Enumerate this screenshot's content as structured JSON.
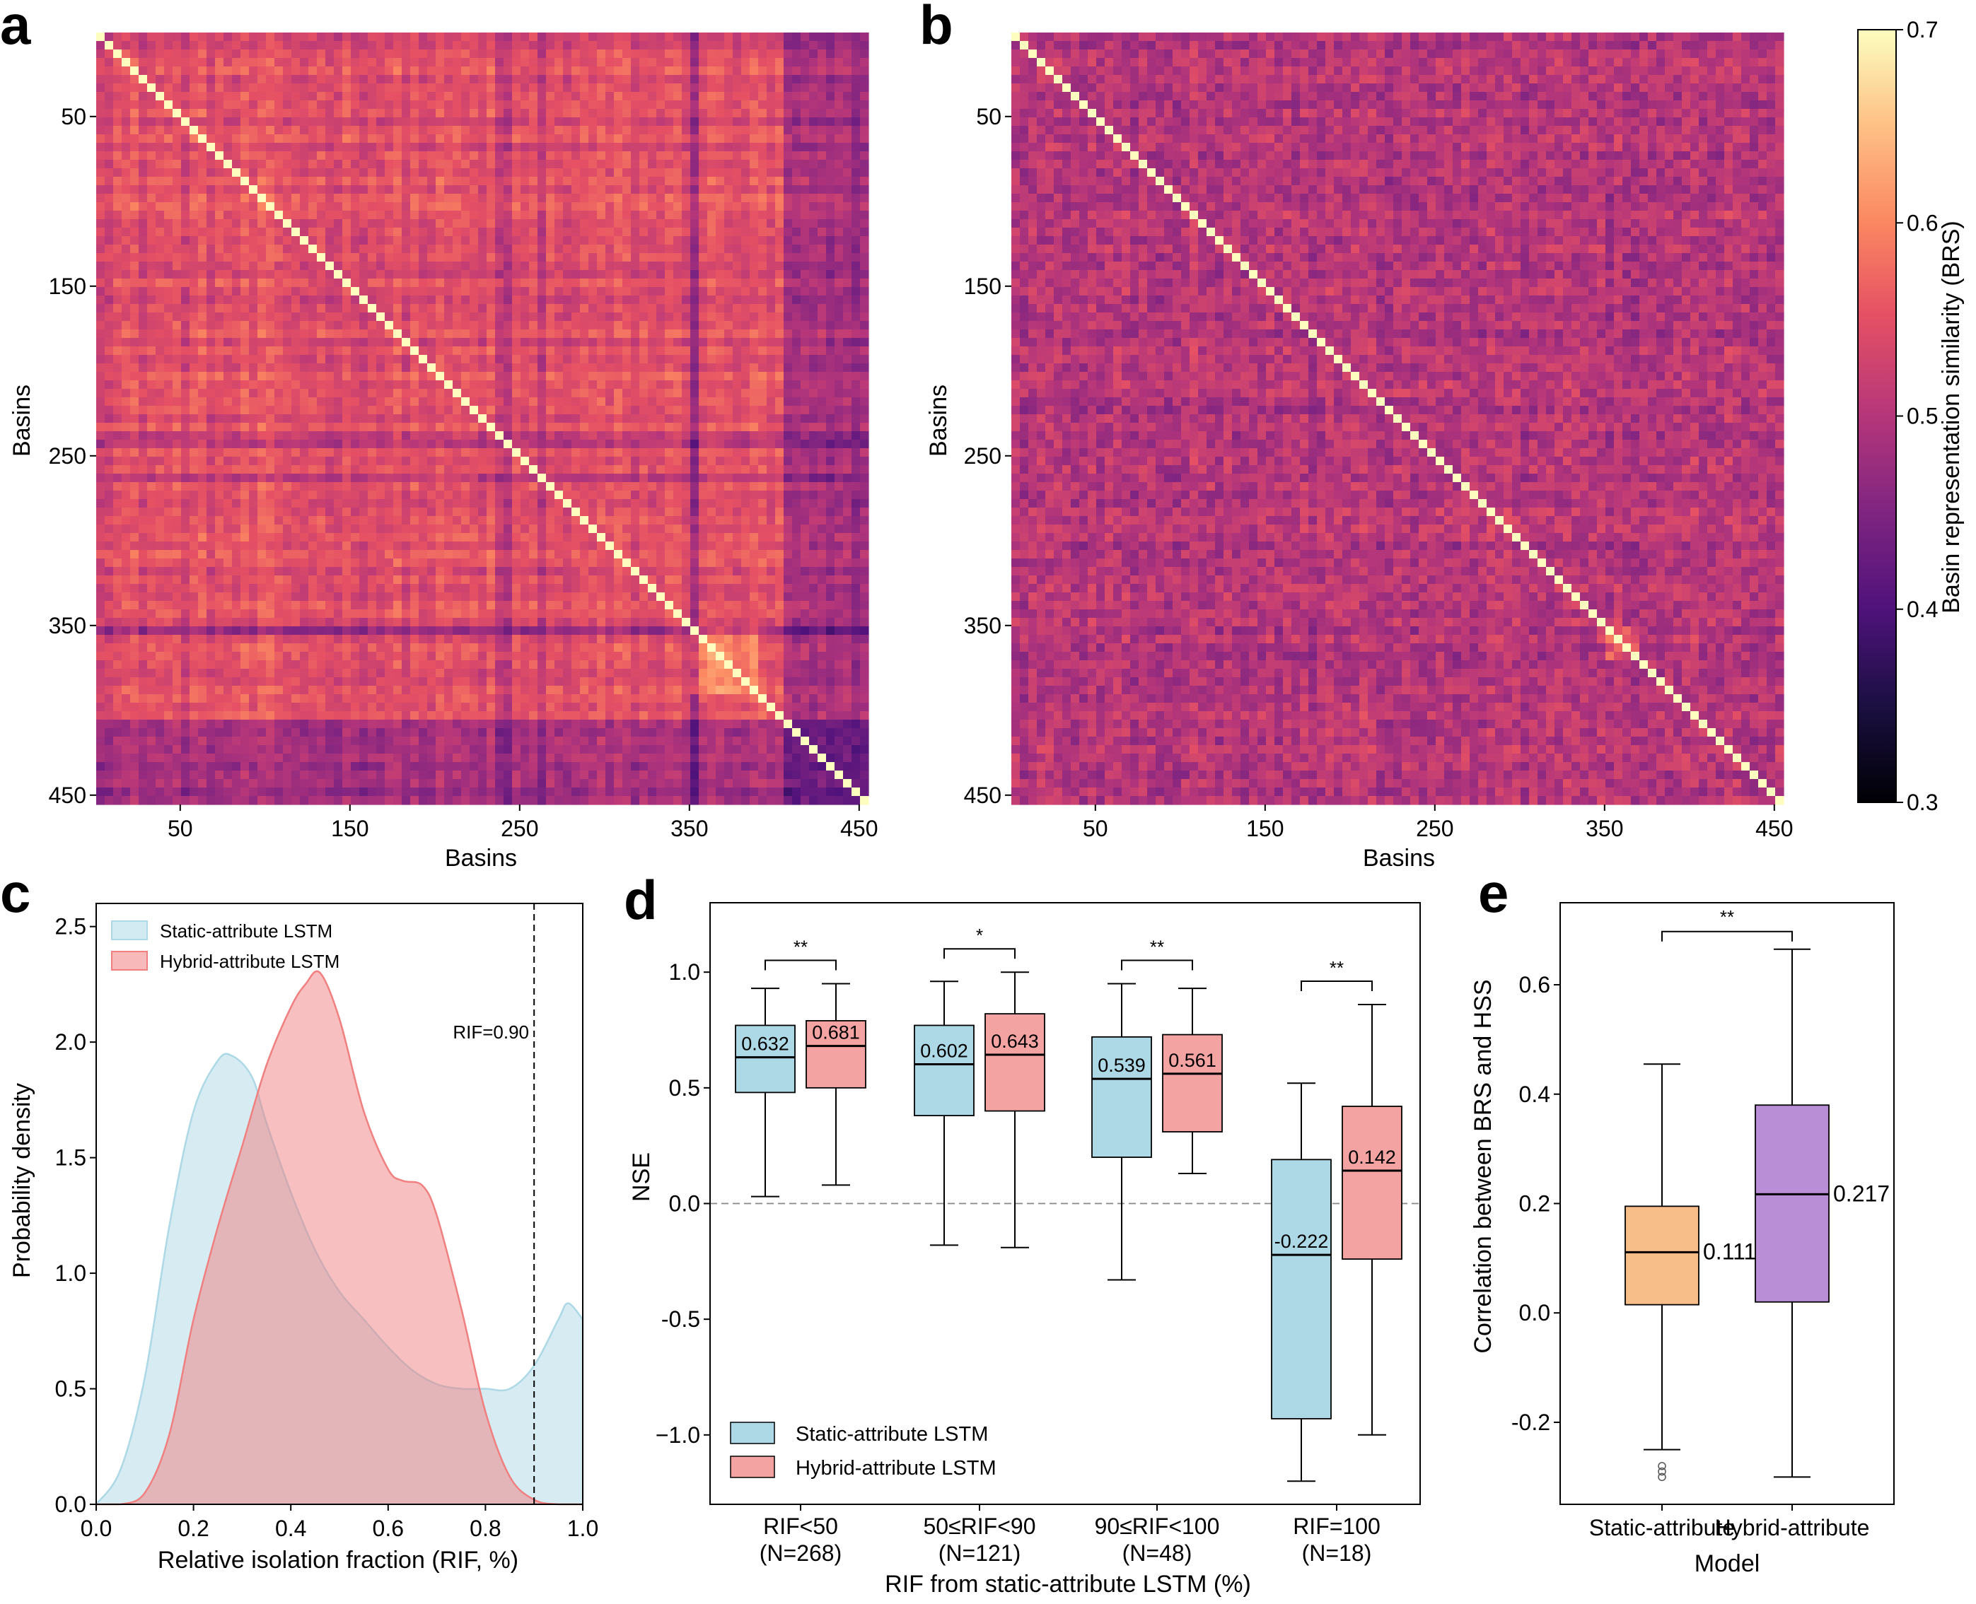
{
  "panel_labels": [
    "a",
    "b",
    "c",
    "d",
    "e"
  ],
  "chart_data": [
    {
      "panel": "a",
      "type": "heatmap",
      "title": "",
      "xlabel": "Basins",
      "ylabel": "Basins",
      "n_basins": 455,
      "x_ticks": [
        50,
        150,
        250,
        350,
        450
      ],
      "y_ticks": [
        50,
        150,
        250,
        350,
        450
      ],
      "value_range": [
        0.3,
        0.7
      ],
      "structure_note": "High-similarity block for basins 1-400; low-similarity bands near 240, 260, 350, 405-455; bright cluster 352-390"
    },
    {
      "panel": "b",
      "type": "heatmap",
      "title": "",
      "xlabel": "Basins",
      "ylabel": "Basins",
      "n_basins": 455,
      "x_ticks": [
        50,
        150,
        250,
        350,
        450
      ],
      "y_ticks": [
        50,
        150,
        250,
        350,
        450
      ],
      "value_range": [
        0.3,
        0.7
      ],
      "structure_note": "Uniform mid similarity with diagonal and bright cluster near 352-370"
    },
    {
      "panel": "colorbar",
      "type": "colorbar",
      "label": "Basin representation similarity (BRS)",
      "range": [
        0.3,
        0.7
      ],
      "ticks": [
        "0.3",
        "0.4",
        "0.5",
        "0.6",
        "0.7"
      ],
      "colormap": "magma"
    },
    {
      "panel": "c",
      "type": "area",
      "xlabel": "Relative isolation fraction (RIF, %)",
      "ylabel": "Probability density",
      "xlim": [
        0.0,
        1.0
      ],
      "ylim": [
        0.0,
        2.6
      ],
      "x_ticks": [
        "0.0",
        "0.2",
        "0.4",
        "0.6",
        "0.8",
        "1.0"
      ],
      "y_ticks": [
        "0.0",
        "0.5",
        "1.0",
        "1.5",
        "2.0",
        "2.5"
      ],
      "series": [
        {
          "name": "Static-attribute LSTM",
          "color": "#add8e6",
          "x": [
            0.0,
            0.05,
            0.1,
            0.15,
            0.2,
            0.25,
            0.28,
            0.32,
            0.35,
            0.4,
            0.45,
            0.5,
            0.55,
            0.6,
            0.65,
            0.7,
            0.75,
            0.8,
            0.85,
            0.9,
            0.95,
            0.97,
            1.0
          ],
          "y": [
            0.0,
            0.15,
            0.55,
            1.2,
            1.7,
            1.92,
            1.94,
            1.85,
            1.65,
            1.35,
            1.1,
            0.92,
            0.8,
            0.68,
            0.58,
            0.52,
            0.5,
            0.5,
            0.5,
            0.6,
            0.8,
            0.87,
            0.8
          ]
        },
        {
          "name": "Hybrid-attribute LSTM",
          "color": "#f08080",
          "x": [
            0.0,
            0.05,
            0.1,
            0.15,
            0.2,
            0.25,
            0.3,
            0.35,
            0.4,
            0.43,
            0.46,
            0.5,
            0.55,
            0.6,
            0.63,
            0.67,
            0.7,
            0.75,
            0.8,
            0.85,
            0.9,
            0.95,
            1.0
          ],
          "y": [
            0.0,
            0.0,
            0.05,
            0.3,
            0.8,
            1.2,
            1.55,
            1.9,
            2.15,
            2.25,
            2.3,
            2.1,
            1.7,
            1.45,
            1.4,
            1.38,
            1.25,
            0.85,
            0.4,
            0.12,
            0.02,
            0.0,
            0.0
          ]
        }
      ],
      "annotations": [
        {
          "text": "RIF=0.90",
          "x": 0.9,
          "style": "dashed-vertical-line"
        }
      ],
      "legend": [
        "Static-attribute LSTM",
        "Hybrid-attribute LSTM"
      ],
      "legend_position": "top-left"
    },
    {
      "panel": "d",
      "type": "box",
      "xlabel": "RIF from static-attribute LSTM (%)",
      "ylabel": "NSE",
      "ylim": [
        -1.3,
        1.3
      ],
      "y_ticks": [
        "−1.0",
        "-0.5",
        "0.0",
        "0.5",
        "1.0"
      ],
      "categories": [
        "RIF<50",
        "50≤RIF<90",
        "90≤RIF<100",
        "RIF=100"
      ],
      "category_counts": [
        "(N=268)",
        "(N=121)",
        "(N=48)",
        "(N=18)"
      ],
      "series": [
        {
          "name": "Static-attribute LSTM",
          "color": "#add8e6",
          "boxes": [
            {
              "whisker_low": 0.03,
              "q1": 0.48,
              "median": 0.632,
              "q3": 0.77,
              "whisker_high": 0.93,
              "median_label": "0.632"
            },
            {
              "whisker_low": -0.18,
              "q1": 0.38,
              "median": 0.602,
              "q3": 0.77,
              "whisker_high": 0.96,
              "median_label": "0.602"
            },
            {
              "whisker_low": -0.33,
              "q1": 0.2,
              "median": 0.539,
              "q3": 0.72,
              "whisker_high": 0.95,
              "median_label": "0.539"
            },
            {
              "whisker_low": -1.2,
              "q1": -0.93,
              "median": -0.222,
              "q3": 0.19,
              "whisker_high": 0.52,
              "median_label": "-0.222"
            }
          ]
        },
        {
          "name": "Hybrid-attribute LSTM",
          "color": "#f4a3a3",
          "boxes": [
            {
              "whisker_low": 0.08,
              "q1": 0.5,
              "median": 0.681,
              "q3": 0.79,
              "whisker_high": 0.95,
              "median_label": "0.681"
            },
            {
              "whisker_low": -0.19,
              "q1": 0.4,
              "median": 0.643,
              "q3": 0.82,
              "whisker_high": 1.0,
              "median_label": "0.643"
            },
            {
              "whisker_low": 0.13,
              "q1": 0.31,
              "median": 0.561,
              "q3": 0.73,
              "whisker_high": 0.93,
              "median_label": "0.561"
            },
            {
              "whisker_low": -1.0,
              "q1": -0.24,
              "median": 0.142,
              "q3": 0.42,
              "whisker_high": 0.86,
              "median_label": "0.142"
            }
          ]
        }
      ],
      "significance": [
        "**",
        "*",
        "**",
        "**"
      ],
      "reference_line": 0.0,
      "legend": [
        "Static-attribute LSTM",
        "Hybrid-attribute LSTM"
      ],
      "legend_position": "bottom-left"
    },
    {
      "panel": "e",
      "type": "box",
      "xlabel": "Model",
      "ylabel": "Correlation between BRS and HSS",
      "ylim": [
        -0.35,
        0.75
      ],
      "y_ticks": [
        "-0.2",
        "0.0",
        "0.2",
        "0.4",
        "0.6"
      ],
      "categories": [
        "Static-attribute",
        "Hybrid-attribute"
      ],
      "boxes": [
        {
          "color": "#f8be8a",
          "whisker_low": -0.25,
          "q1": 0.015,
          "median": 0.111,
          "q3": 0.195,
          "whisker_high": 0.455,
          "median_label": "0.111",
          "outliers": [
            -0.28,
            -0.29,
            -0.3
          ]
        },
        {
          "color": "#b98ed6",
          "whisker_low": -0.3,
          "q1": 0.02,
          "median": 0.217,
          "q3": 0.38,
          "whisker_high": 0.665,
          "median_label": "0.217",
          "outliers": []
        }
      ],
      "significance": "**"
    }
  ]
}
